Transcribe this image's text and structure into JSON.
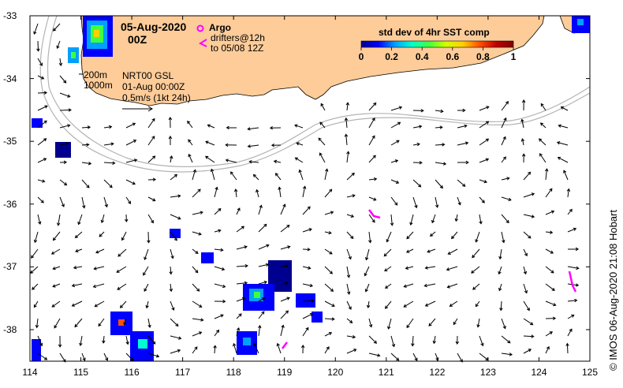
{
  "title": {
    "date": "05-Aug-2020",
    "time": "00Z"
  },
  "legend": {
    "argo_label": "Argo",
    "drifters_line1": "drifters@12h",
    "drifters_line2": "to 05/08 12Z",
    "colorbar_title": "std dev of 4hr SST comp",
    "colorbar_ticks": [
      "0",
      "0.2",
      "0.4",
      "0.6",
      "0.8",
      "1"
    ],
    "colorbar_stops": [
      "#00008f",
      "#0000ff",
      "#00a0ff",
      "#00ffd0",
      "#40ff40",
      "#d0ff00",
      "#ffd000",
      "#ff5000",
      "#c00000",
      "#800000"
    ]
  },
  "annotations": {
    "isobath_1": "200m",
    "isobath_2": "1000m",
    "product_line1": "NRT00 GSL",
    "product_line2": "01-Aug 00:00Z",
    "scale_label": "0.5m/s (1kt 24h)"
  },
  "axes": {
    "lon_ticks": [
      "114",
      "115",
      "116",
      "117",
      "118",
      "119",
      "120",
      "121",
      "122",
      "123",
      "124",
      "125"
    ],
    "lat_ticks": [
      "-33",
      "-34",
      "-35",
      "-36",
      "-37",
      "-38"
    ]
  },
  "credit": "© IMOS 06-Aug-2020 21:08 Hobart",
  "colors": {
    "land": "#fdcc99",
    "drifter": "#ff00ff",
    "isobath": "#b4b4b4"
  }
}
